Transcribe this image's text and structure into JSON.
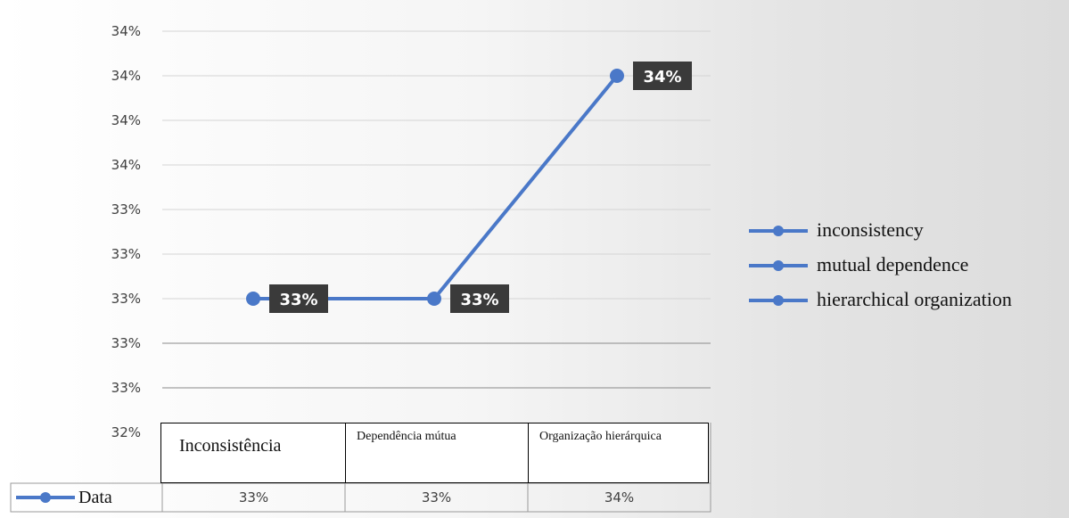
{
  "chart_data": {
    "type": "line",
    "categories": [
      "Inconsistência",
      "Dependência mútua",
      "Organização hierárquica"
    ],
    "series": [
      {
        "name": "Data",
        "values": [
          33,
          33,
          34
        ],
        "labels": [
          "33%",
          "33%",
          "34%"
        ],
        "color": "#4a78c8"
      }
    ],
    "y_tick_labels": [
      "34%",
      "34%",
      "34%",
      "34%",
      "33%",
      "33%",
      "33%",
      "33%",
      "33%",
      "32%"
    ],
    "legend": {
      "placement": "right",
      "entries": [
        "inconsistency",
        "mutual dependence",
        "hierarchical organization"
      ]
    },
    "data_table": {
      "row_label": "Data",
      "values": [
        "33%",
        "33%",
        "34%"
      ]
    },
    "grid": true
  }
}
